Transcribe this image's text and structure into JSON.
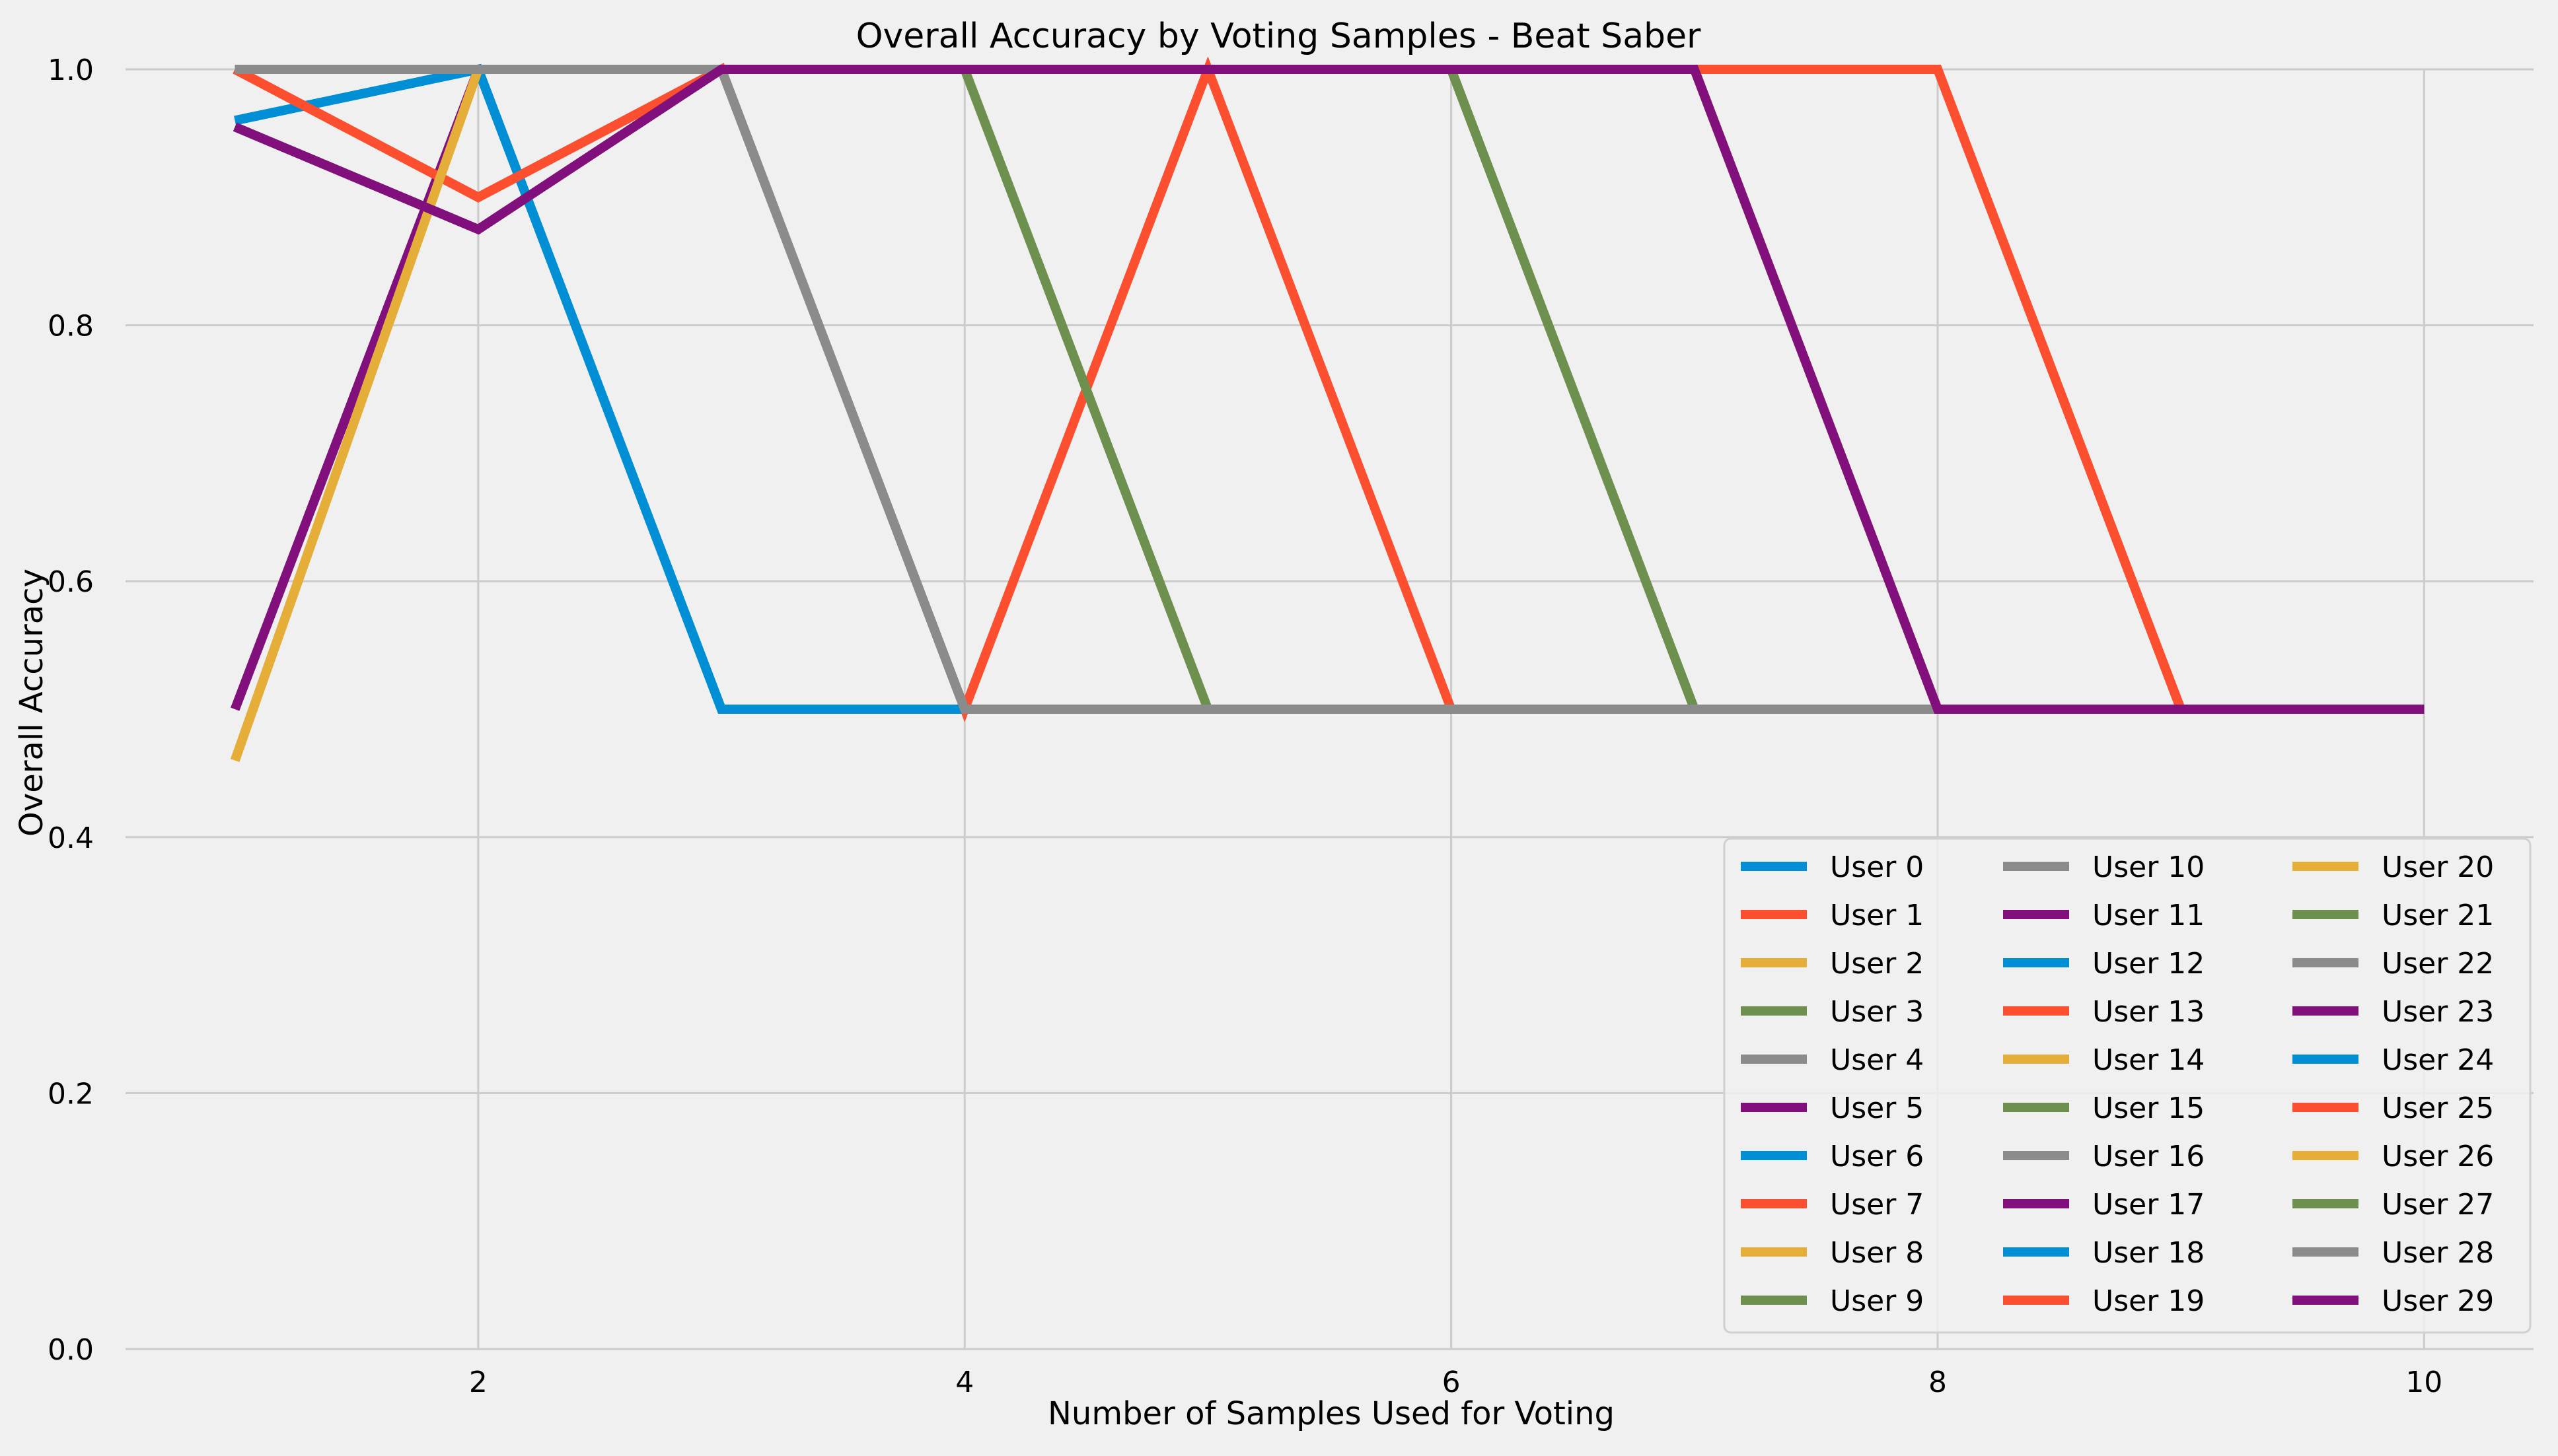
{
  "chart_data": {
    "type": "line",
    "title": "Overall Accuracy by Voting Samples - Beat Saber",
    "xlabel": "Number of Samples Used for Voting",
    "ylabel": "Overall Accuracy",
    "xlim": [
      0.55,
      10.45
    ],
    "ylim": [
      0.0,
      1.0
    ],
    "xticks": [
      2,
      4,
      6,
      8,
      10
    ],
    "yticks": [
      0.0,
      0.2,
      0.4,
      0.6,
      0.8,
      1.0
    ],
    "grid": true,
    "legend": {
      "placement": "lower-right",
      "columns": 3
    },
    "colors": {
      "blue": "#008fd5",
      "red": "#fc4f30",
      "yellow": "#e5ae38",
      "green": "#6d904f",
      "gray": "#8b8b8b",
      "purple": "#810f7c",
      "background": "#f0f0f0",
      "grid": "#cbcbcb"
    },
    "series": [
      {
        "name": "User 0",
        "color": "#008fd5",
        "x": [
          1,
          2,
          3,
          4,
          5,
          6,
          7,
          8,
          9,
          10
        ],
        "values": [
          0.96,
          1,
          0.5,
          0.5,
          0.5,
          0.5,
          0.5,
          0.5,
          0.5,
          0.5
        ]
      },
      {
        "name": "User 1",
        "color": "#fc4f30",
        "x": [
          1,
          2,
          3,
          4,
          5,
          6,
          7,
          8,
          9,
          10
        ],
        "values": [
          1,
          0.9,
          1,
          1,
          1,
          1,
          1,
          1,
          0.5,
          0.5
        ]
      },
      {
        "name": "User 2",
        "color": "#e5ae38",
        "x": [
          1,
          2,
          3,
          4,
          5,
          6,
          7,
          8,
          9,
          10
        ],
        "values": [
          0.46,
          1,
          1,
          1,
          1,
          1,
          1,
          0.5,
          0.5,
          0.5
        ]
      },
      {
        "name": "User 3",
        "color": "#6d904f",
        "x": [
          1,
          2,
          3,
          4,
          5,
          6,
          7,
          8,
          9,
          10
        ],
        "values": [
          1,
          1,
          1,
          1,
          0.5,
          0.5,
          0.5,
          0.5,
          0.5,
          0.5
        ]
      },
      {
        "name": "User 4",
        "color": "#8b8b8b",
        "x": [
          1,
          2,
          3,
          4,
          5,
          6,
          7,
          8,
          9,
          10
        ],
        "values": [
          1,
          1,
          1,
          0.5,
          0.5,
          0.5,
          0.5,
          0.5,
          0.5,
          0.5
        ]
      },
      {
        "name": "User 5",
        "color": "#810f7c",
        "x": [
          1,
          2,
          3,
          4,
          5,
          6,
          7,
          8,
          9,
          10
        ],
        "values": [
          0.5,
          1,
          1,
          1,
          1,
          1,
          1,
          0.5,
          0.5,
          0.5
        ]
      },
      {
        "name": "User 6",
        "color": "#008fd5",
        "x": [
          1,
          2,
          3,
          4,
          5,
          6,
          7,
          8,
          9,
          10
        ],
        "values": [
          0.96,
          1,
          0.5,
          0.5,
          0.5,
          0.5,
          0.5,
          0.5,
          0.5,
          0.5
        ]
      },
      {
        "name": "User 7",
        "color": "#fc4f30",
        "x": [
          1,
          2,
          3,
          4,
          5,
          6,
          7,
          8,
          9,
          10
        ],
        "values": [
          1,
          0.9,
          1,
          0.5,
          1,
          0.5,
          0.5,
          0.5,
          0.5,
          0.5
        ]
      },
      {
        "name": "User 8",
        "color": "#e5ae38",
        "x": [
          1,
          2,
          3,
          4,
          5,
          6,
          7,
          8,
          9,
          10
        ],
        "values": [
          0.46,
          1,
          1,
          1,
          1,
          1,
          1,
          0.5,
          0.5,
          0.5
        ]
      },
      {
        "name": "User 9",
        "color": "#6d904f",
        "x": [
          1,
          2,
          3,
          4,
          5,
          6,
          7,
          8,
          9,
          10
        ],
        "values": [
          1,
          1,
          1,
          1,
          1,
          1,
          0.5,
          0.5,
          0.5,
          0.5
        ]
      },
      {
        "name": "User 10",
        "color": "#8b8b8b",
        "x": [
          1,
          2,
          3,
          4,
          5,
          6,
          7,
          8,
          9,
          10
        ],
        "values": [
          1,
          1,
          1,
          0.5,
          0.5,
          0.5,
          0.5,
          0.5,
          0.5,
          0.5
        ]
      },
      {
        "name": "User 11",
        "color": "#810f7c",
        "x": [
          1,
          2,
          3,
          4,
          5,
          6,
          7,
          8,
          9,
          10
        ],
        "values": [
          0.955,
          0.875,
          1,
          1,
          1,
          1,
          1,
          0.5,
          0.5,
          0.5
        ]
      },
      {
        "name": "User 12",
        "color": "#008fd5",
        "x": [
          1,
          2,
          3,
          4,
          5,
          6,
          7,
          8,
          9,
          10
        ],
        "values": [
          0.96,
          1,
          0.5,
          0.5,
          0.5,
          0.5,
          0.5,
          0.5,
          0.5,
          0.5
        ]
      },
      {
        "name": "User 13",
        "color": "#fc4f30",
        "x": [
          1,
          2,
          3,
          4,
          5,
          6,
          7,
          8,
          9,
          10
        ],
        "values": [
          1,
          0.9,
          1,
          1,
          1,
          1,
          1,
          1,
          0.5,
          0.5
        ]
      },
      {
        "name": "User 14",
        "color": "#e5ae38",
        "x": [
          1,
          2,
          3,
          4,
          5,
          6,
          7,
          8,
          9,
          10
        ],
        "values": [
          0.46,
          1,
          1,
          1,
          1,
          1,
          1,
          0.5,
          0.5,
          0.5
        ]
      },
      {
        "name": "User 15",
        "color": "#6d904f",
        "x": [
          1,
          2,
          3,
          4,
          5,
          6,
          7,
          8,
          9,
          10
        ],
        "values": [
          1,
          1,
          1,
          1,
          0.5,
          0.5,
          0.5,
          0.5,
          0.5,
          0.5
        ]
      },
      {
        "name": "User 16",
        "color": "#8b8b8b",
        "x": [
          1,
          2,
          3,
          4,
          5,
          6,
          7,
          8,
          9,
          10
        ],
        "values": [
          1,
          1,
          1,
          0.5,
          0.5,
          0.5,
          0.5,
          0.5,
          0.5,
          0.5
        ]
      },
      {
        "name": "User 17",
        "color": "#810f7c",
        "x": [
          1,
          2,
          3,
          4,
          5,
          6,
          7,
          8,
          9,
          10
        ],
        "values": [
          0.5,
          1,
          1,
          1,
          1,
          1,
          1,
          0.5,
          0.5,
          0.5
        ]
      },
      {
        "name": "User 18",
        "color": "#008fd5",
        "x": [
          1,
          2,
          3,
          4,
          5,
          6,
          7,
          8,
          9,
          10
        ],
        "values": [
          0.96,
          1,
          0.5,
          0.5,
          0.5,
          0.5,
          0.5,
          0.5,
          0.5,
          0.5
        ]
      },
      {
        "name": "User 19",
        "color": "#fc4f30",
        "x": [
          1,
          2,
          3,
          4,
          5,
          6,
          7,
          8,
          9,
          10
        ],
        "values": [
          1,
          0.9,
          1,
          1,
          1,
          1,
          1,
          1,
          0.5,
          0.5
        ]
      },
      {
        "name": "User 20",
        "color": "#e5ae38",
        "x": [
          1,
          2,
          3,
          4,
          5,
          6,
          7,
          8,
          9,
          10
        ],
        "values": [
          0.46,
          1,
          1,
          1,
          1,
          1,
          1,
          0.5,
          0.5,
          0.5
        ]
      },
      {
        "name": "User 21",
        "color": "#6d904f",
        "x": [
          1,
          2,
          3,
          4,
          5,
          6,
          7,
          8,
          9,
          10
        ],
        "values": [
          1,
          1,
          1,
          1,
          1,
          1,
          0.5,
          0.5,
          0.5,
          0.5
        ]
      },
      {
        "name": "User 22",
        "color": "#8b8b8b",
        "x": [
          1,
          2,
          3,
          4,
          5,
          6,
          7,
          8,
          9,
          10
        ],
        "values": [
          1,
          1,
          1,
          0.5,
          0.5,
          0.5,
          0.5,
          0.5,
          0.5,
          0.5
        ]
      },
      {
        "name": "User 23",
        "color": "#810f7c",
        "x": [
          1,
          2,
          3,
          4,
          5,
          6,
          7,
          8,
          9,
          10
        ],
        "values": [
          0.955,
          0.875,
          1,
          1,
          1,
          1,
          1,
          0.5,
          0.5,
          0.5
        ]
      },
      {
        "name": "User 24",
        "color": "#008fd5",
        "x": [
          1,
          2,
          3,
          4,
          5,
          6,
          7,
          8,
          9,
          10
        ],
        "values": [
          0.96,
          1,
          0.5,
          0.5,
          0.5,
          0.5,
          0.5,
          0.5,
          0.5,
          0.5
        ]
      },
      {
        "name": "User 25",
        "color": "#fc4f30",
        "x": [
          1,
          2,
          3,
          4,
          5,
          6,
          7,
          8,
          9,
          10
        ],
        "values": [
          1,
          0.9,
          1,
          1,
          1,
          1,
          1,
          1,
          0.5,
          0.5
        ]
      },
      {
        "name": "User 26",
        "color": "#e5ae38",
        "x": [
          1,
          2,
          3,
          4,
          5,
          6,
          7,
          8,
          9,
          10
        ],
        "values": [
          0.46,
          1,
          1,
          1,
          1,
          1,
          1,
          0.5,
          0.5,
          0.5
        ]
      },
      {
        "name": "User 27",
        "color": "#6d904f",
        "x": [
          1,
          2,
          3,
          4,
          5,
          6,
          7,
          8,
          9,
          10
        ],
        "values": [
          1,
          1,
          1,
          1,
          1,
          1,
          0.5,
          0.5,
          0.5,
          0.5
        ]
      },
      {
        "name": "User 28",
        "color": "#8b8b8b",
        "x": [
          1,
          2,
          3,
          4,
          5,
          6,
          7,
          8,
          9,
          10
        ],
        "values": [
          1,
          1,
          1,
          0.5,
          0.5,
          0.5,
          0.5,
          0.5,
          0.5,
          0.5
        ]
      },
      {
        "name": "User 29",
        "color": "#810f7c",
        "x": [
          1,
          2,
          3,
          4,
          5,
          6,
          7,
          8,
          9,
          10
        ],
        "values": [
          0.955,
          0.875,
          1,
          1,
          1,
          1,
          1,
          0.5,
          0.5,
          0.5
        ]
      }
    ]
  }
}
